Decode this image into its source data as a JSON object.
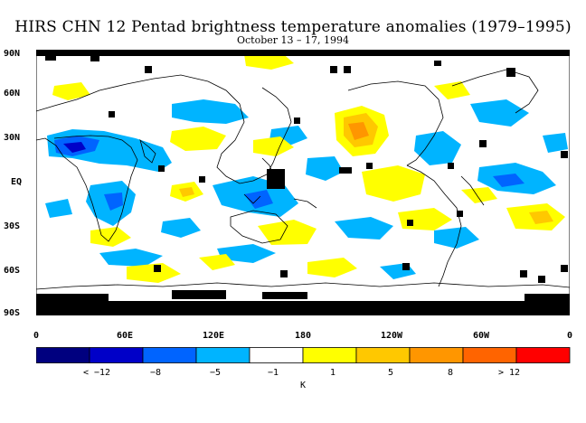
{
  "title": "HIRS CHN 12 Pentad brightness temperature anomalies (1979–1995)",
  "subtitle": "October 13 – 17, 1994",
  "lat_labels": [
    "90N",
    "60N",
    "30N",
    "EQ",
    "30S",
    "60S",
    "90S"
  ],
  "lon_labels": [
    "0",
    "60E",
    "120E",
    "180",
    "120W",
    "60W",
    "0"
  ],
  "colorbar": {
    "colors": [
      "#00007f",
      "#0000c8",
      "#0064ff",
      "#00b4ff",
      "#ffffff",
      "#ffff00",
      "#ffc800",
      "#ff9600",
      "#ff6400",
      "#ff0000"
    ],
    "labels": [
      "< −12",
      "−8",
      "−5",
      "−1",
      "1",
      "5",
      "8",
      "> 12"
    ],
    "unit": "K"
  },
  "colors": {
    "missing": "#000000",
    "coast": "#000000"
  }
}
